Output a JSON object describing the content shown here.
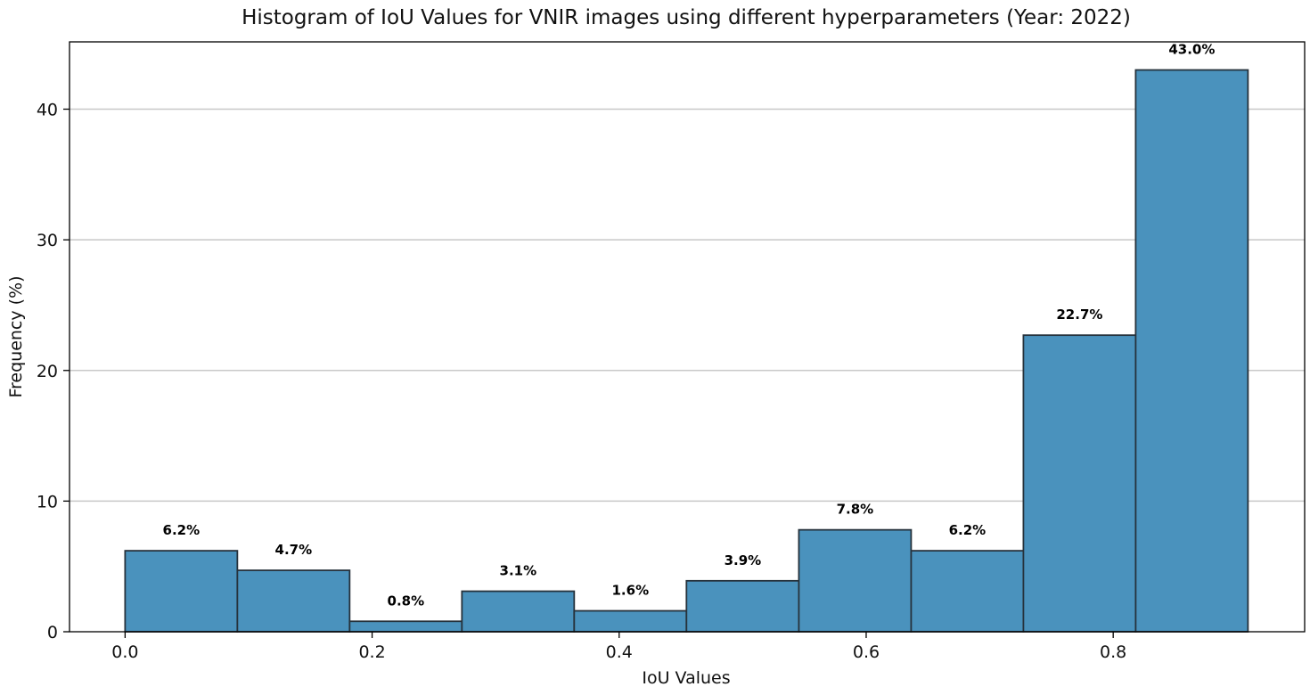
{
  "chart_data": {
    "type": "bar",
    "title": "Histogram of IoU Values for VNIR images using different hyperparameters (Year: 2022)",
    "xlabel": "IoU Values",
    "ylabel": "Frequency (%)",
    "bin_edges": [
      0.0,
      0.0909,
      0.1818,
      0.2727,
      0.3636,
      0.4545,
      0.5455,
      0.6364,
      0.7273,
      0.8182,
      0.9091
    ],
    "values": [
      6.2,
      4.7,
      0.8,
      3.1,
      1.6,
      3.9,
      7.8,
      6.2,
      22.7,
      43.0
    ],
    "value_labels": [
      "6.2%",
      "4.7%",
      "0.8%",
      "3.1%",
      "1.6%",
      "3.9%",
      "7.8%",
      "6.2%",
      "22.7%",
      "43.0%"
    ],
    "xlim": [
      -0.045,
      0.955
    ],
    "ylim": [
      0,
      45.15
    ],
    "xticks": [
      0.0,
      0.2,
      0.4,
      0.6,
      0.8
    ],
    "xtick_labels": [
      "0.0",
      "0.2",
      "0.4",
      "0.6",
      "0.8"
    ],
    "yticks": [
      0,
      10,
      20,
      30,
      40
    ],
    "ytick_labels": [
      "0",
      "10",
      "20",
      "30",
      "40"
    ],
    "grid": "y",
    "bar_color": "#4a92bd",
    "edge_color": "#26323c"
  }
}
